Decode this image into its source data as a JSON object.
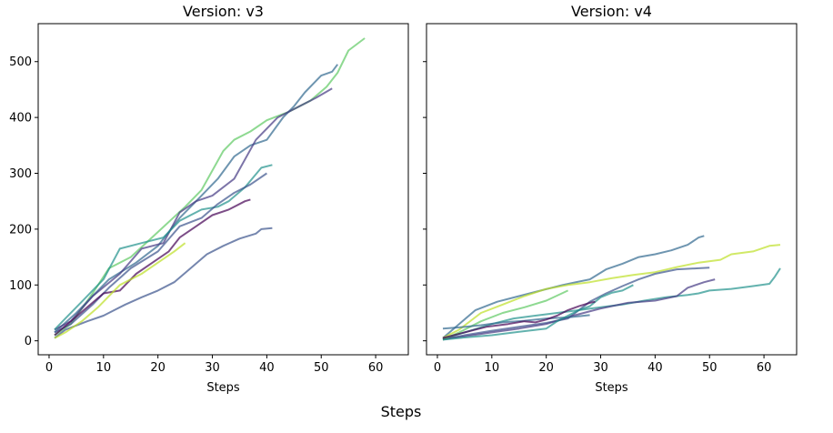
{
  "figure": {
    "supxlabel": "Steps"
  },
  "chart_data": [
    {
      "type": "line",
      "title": "Version: v3",
      "xlabel": "Steps",
      "ylabel": "",
      "xlim": [
        -2,
        66
      ],
      "ylim": [
        -25,
        568
      ],
      "xticks": [
        0,
        10,
        20,
        30,
        40,
        50,
        60
      ],
      "yticks": [
        0,
        100,
        200,
        300,
        400,
        500
      ],
      "series": [
        {
          "color": "#5ec962",
          "points": [
            [
              1,
              10
            ],
            [
              4,
              30
            ],
            [
              8,
              85
            ],
            [
              11,
              130
            ],
            [
              15,
              150
            ],
            [
              20,
              195
            ],
            [
              25,
              240
            ],
            [
              28,
              270
            ],
            [
              32,
              340
            ],
            [
              34,
              360
            ],
            [
              37,
              375
            ],
            [
              40,
              395
            ],
            [
              44,
              410
            ],
            [
              48,
              430
            ],
            [
              51,
              455
            ],
            [
              53,
              480
            ],
            [
              55,
              520
            ],
            [
              58,
              542
            ]
          ]
        },
        {
          "color": "#31688e",
          "points": [
            [
              1,
              15
            ],
            [
              5,
              50
            ],
            [
              8,
              80
            ],
            [
              11,
              110
            ],
            [
              16,
              140
            ],
            [
              20,
              170
            ],
            [
              24,
              220
            ],
            [
              28,
              260
            ],
            [
              31,
              290
            ],
            [
              34,
              330
            ],
            [
              37,
              350
            ],
            [
              40,
              360
            ],
            [
              43,
              400
            ],
            [
              45,
              420
            ],
            [
              47,
              445
            ],
            [
              50,
              475
            ],
            [
              52,
              482
            ],
            [
              53,
              495
            ]
          ]
        },
        {
          "color": "#443983",
          "points": [
            [
              1,
              20
            ],
            [
              4,
              35
            ],
            [
              8,
              80
            ],
            [
              13,
              120
            ],
            [
              17,
              165
            ],
            [
              21,
              175
            ],
            [
              24,
              230
            ],
            [
              27,
              250
            ],
            [
              30,
              260
            ],
            [
              34,
              290
            ],
            [
              38,
              360
            ],
            [
              42,
              400
            ],
            [
              46,
              420
            ],
            [
              49,
              435
            ],
            [
              52,
              452
            ]
          ]
        },
        {
          "color": "#21918c",
          "points": [
            [
              1,
              20
            ],
            [
              3,
              40
            ],
            [
              6,
              70
            ],
            [
              10,
              110
            ],
            [
              13,
              165
            ],
            [
              17,
              175
            ],
            [
              21,
              185
            ],
            [
              24,
              215
            ],
            [
              28,
              235
            ],
            [
              31,
              240
            ],
            [
              33,
              250
            ],
            [
              36,
              275
            ],
            [
              39,
              310
            ],
            [
              41,
              315
            ]
          ]
        },
        {
          "color": "#3b528b",
          "points": [
            [
              1,
              15
            ],
            [
              4,
              30
            ],
            [
              8,
              65
            ],
            [
              11,
              95
            ],
            [
              15,
              130
            ],
            [
              20,
              160
            ],
            [
              24,
              205
            ],
            [
              28,
              220
            ],
            [
              31,
              245
            ],
            [
              34,
              265
            ],
            [
              37,
              280
            ],
            [
              40,
              300
            ]
          ]
        },
        {
          "color": "#440154",
          "points": [
            [
              1,
              10
            ],
            [
              4,
              35
            ],
            [
              7,
              60
            ],
            [
              10,
              85
            ],
            [
              13,
              90
            ],
            [
              16,
              120
            ],
            [
              19,
              140
            ],
            [
              22,
              160
            ],
            [
              24,
              185
            ],
            [
              27,
              205
            ],
            [
              30,
              225
            ],
            [
              33,
              235
            ],
            [
              36,
              250
            ],
            [
              37,
              253
            ]
          ]
        },
        {
          "color": "#3b528b",
          "points": [
            [
              1,
              5
            ],
            [
              3,
              20
            ],
            [
              7,
              35
            ],
            [
              10,
              45
            ],
            [
              14,
              65
            ],
            [
              17,
              78
            ],
            [
              20,
              90
            ],
            [
              23,
              105
            ],
            [
              26,
              130
            ],
            [
              29,
              155
            ],
            [
              32,
              170
            ],
            [
              35,
              183
            ],
            [
              38,
              192
            ],
            [
              39,
              200
            ],
            [
              41,
              202
            ]
          ]
        },
        {
          "color": "#bddf26",
          "points": [
            [
              1,
              5
            ],
            [
              3,
              15
            ],
            [
              6,
              35
            ],
            [
              9,
              60
            ],
            [
              13,
              100
            ],
            [
              17,
              120
            ],
            [
              20,
              140
            ],
            [
              23,
              160
            ],
            [
              25,
              175
            ]
          ]
        }
      ]
    },
    {
      "type": "line",
      "title": "Version: v4",
      "xlabel": "Steps",
      "ylabel": "",
      "xlim": [
        -2,
        66
      ],
      "ylim": [
        -25,
        568
      ],
      "xticks": [
        0,
        10,
        20,
        30,
        40,
        50,
        60
      ],
      "yticks": [
        0,
        100,
        200,
        300,
        400,
        500
      ],
      "series": [
        {
          "color": "#31688e",
          "points": [
            [
              1,
              5
            ],
            [
              4,
              30
            ],
            [
              7,
              55
            ],
            [
              11,
              70
            ],
            [
              15,
              80
            ],
            [
              19,
              90
            ],
            [
              23,
              100
            ],
            [
              28,
              110
            ],
            [
              31,
              128
            ],
            [
              34,
              138
            ],
            [
              37,
              150
            ],
            [
              40,
              155
            ],
            [
              43,
              162
            ],
            [
              46,
              172
            ],
            [
              48,
              185
            ],
            [
              49,
              188
            ]
          ]
        },
        {
          "color": "#bddf26",
          "points": [
            [
              1,
              5
            ],
            [
              4,
              20
            ],
            [
              8,
              50
            ],
            [
              12,
              65
            ],
            [
              16,
              80
            ],
            [
              20,
              93
            ],
            [
              24,
              100
            ],
            [
              28,
              105
            ],
            [
              32,
              112
            ],
            [
              36,
              118
            ],
            [
              40,
              123
            ],
            [
              44,
              132
            ],
            [
              48,
              140
            ],
            [
              52,
              145
            ],
            [
              54,
              155
            ],
            [
              58,
              160
            ],
            [
              61,
              170
            ],
            [
              63,
              172
            ]
          ]
        },
        {
          "color": "#21918c",
          "points": [
            [
              1,
              3
            ],
            [
              5,
              15
            ],
            [
              10,
              30
            ],
            [
              14,
              40
            ],
            [
              18,
              45
            ],
            [
              22,
              50
            ],
            [
              26,
              55
            ],
            [
              30,
              60
            ],
            [
              34,
              65
            ],
            [
              38,
              72
            ],
            [
              42,
              78
            ],
            [
              46,
              82
            ],
            [
              48,
              85
            ],
            [
              50,
              90
            ],
            [
              54,
              93
            ],
            [
              58,
              98
            ],
            [
              61,
              102
            ],
            [
              62,
              115
            ],
            [
              63,
              130
            ]
          ]
        },
        {
          "color": "#3b528b",
          "points": [
            [
              1,
              2
            ],
            [
              5,
              10
            ],
            [
              10,
              18
            ],
            [
              15,
              25
            ],
            [
              20,
              32
            ],
            [
              24,
              40
            ],
            [
              26,
              55
            ],
            [
              28,
              70
            ],
            [
              31,
              85
            ],
            [
              34,
              98
            ],
            [
              37,
              110
            ],
            [
              40,
              120
            ],
            [
              44,
              128
            ],
            [
              48,
              130
            ],
            [
              50,
              131
            ]
          ]
        },
        {
          "color": "#443983",
          "points": [
            [
              1,
              3
            ],
            [
              5,
              8
            ],
            [
              10,
              15
            ],
            [
              15,
              22
            ],
            [
              20,
              30
            ],
            [
              25,
              45
            ],
            [
              30,
              58
            ],
            [
              35,
              68
            ],
            [
              40,
              72
            ],
            [
              44,
              80
            ],
            [
              46,
              95
            ],
            [
              49,
              105
            ],
            [
              51,
              110
            ]
          ]
        },
        {
          "color": "#5ec962",
          "points": [
            [
              1,
              2
            ],
            [
              4,
              15
            ],
            [
              8,
              35
            ],
            [
              12,
              50
            ],
            [
              16,
              60
            ],
            [
              20,
              72
            ],
            [
              24,
              90
            ]
          ]
        },
        {
          "color": "#31688e",
          "points": [
            [
              1,
              22
            ],
            [
              4,
              24
            ],
            [
              8,
              28
            ],
            [
              12,
              33
            ],
            [
              16,
              36
            ],
            [
              20,
              40
            ],
            [
              24,
              42
            ],
            [
              28,
              46
            ]
          ]
        },
        {
          "color": "#21918c",
          "points": [
            [
              1,
              2
            ],
            [
              5,
              6
            ],
            [
              10,
              10
            ],
            [
              15,
              16
            ],
            [
              20,
              22
            ],
            [
              22,
              35
            ],
            [
              24,
              45
            ],
            [
              26,
              55
            ],
            [
              28,
              62
            ],
            [
              30,
              78
            ],
            [
              32,
              86
            ],
            [
              34,
              90
            ],
            [
              36,
              100
            ]
          ]
        },
        {
          "color": "#440154",
          "points": [
            [
              1,
              5
            ],
            [
              5,
              15
            ],
            [
              9,
              25
            ],
            [
              13,
              30
            ],
            [
              16,
              35
            ],
            [
              18,
              33
            ],
            [
              20,
              38
            ],
            [
              22,
              45
            ],
            [
              24,
              55
            ],
            [
              26,
              62
            ],
            [
              28,
              68
            ],
            [
              29,
              70
            ]
          ]
        }
      ]
    }
  ]
}
